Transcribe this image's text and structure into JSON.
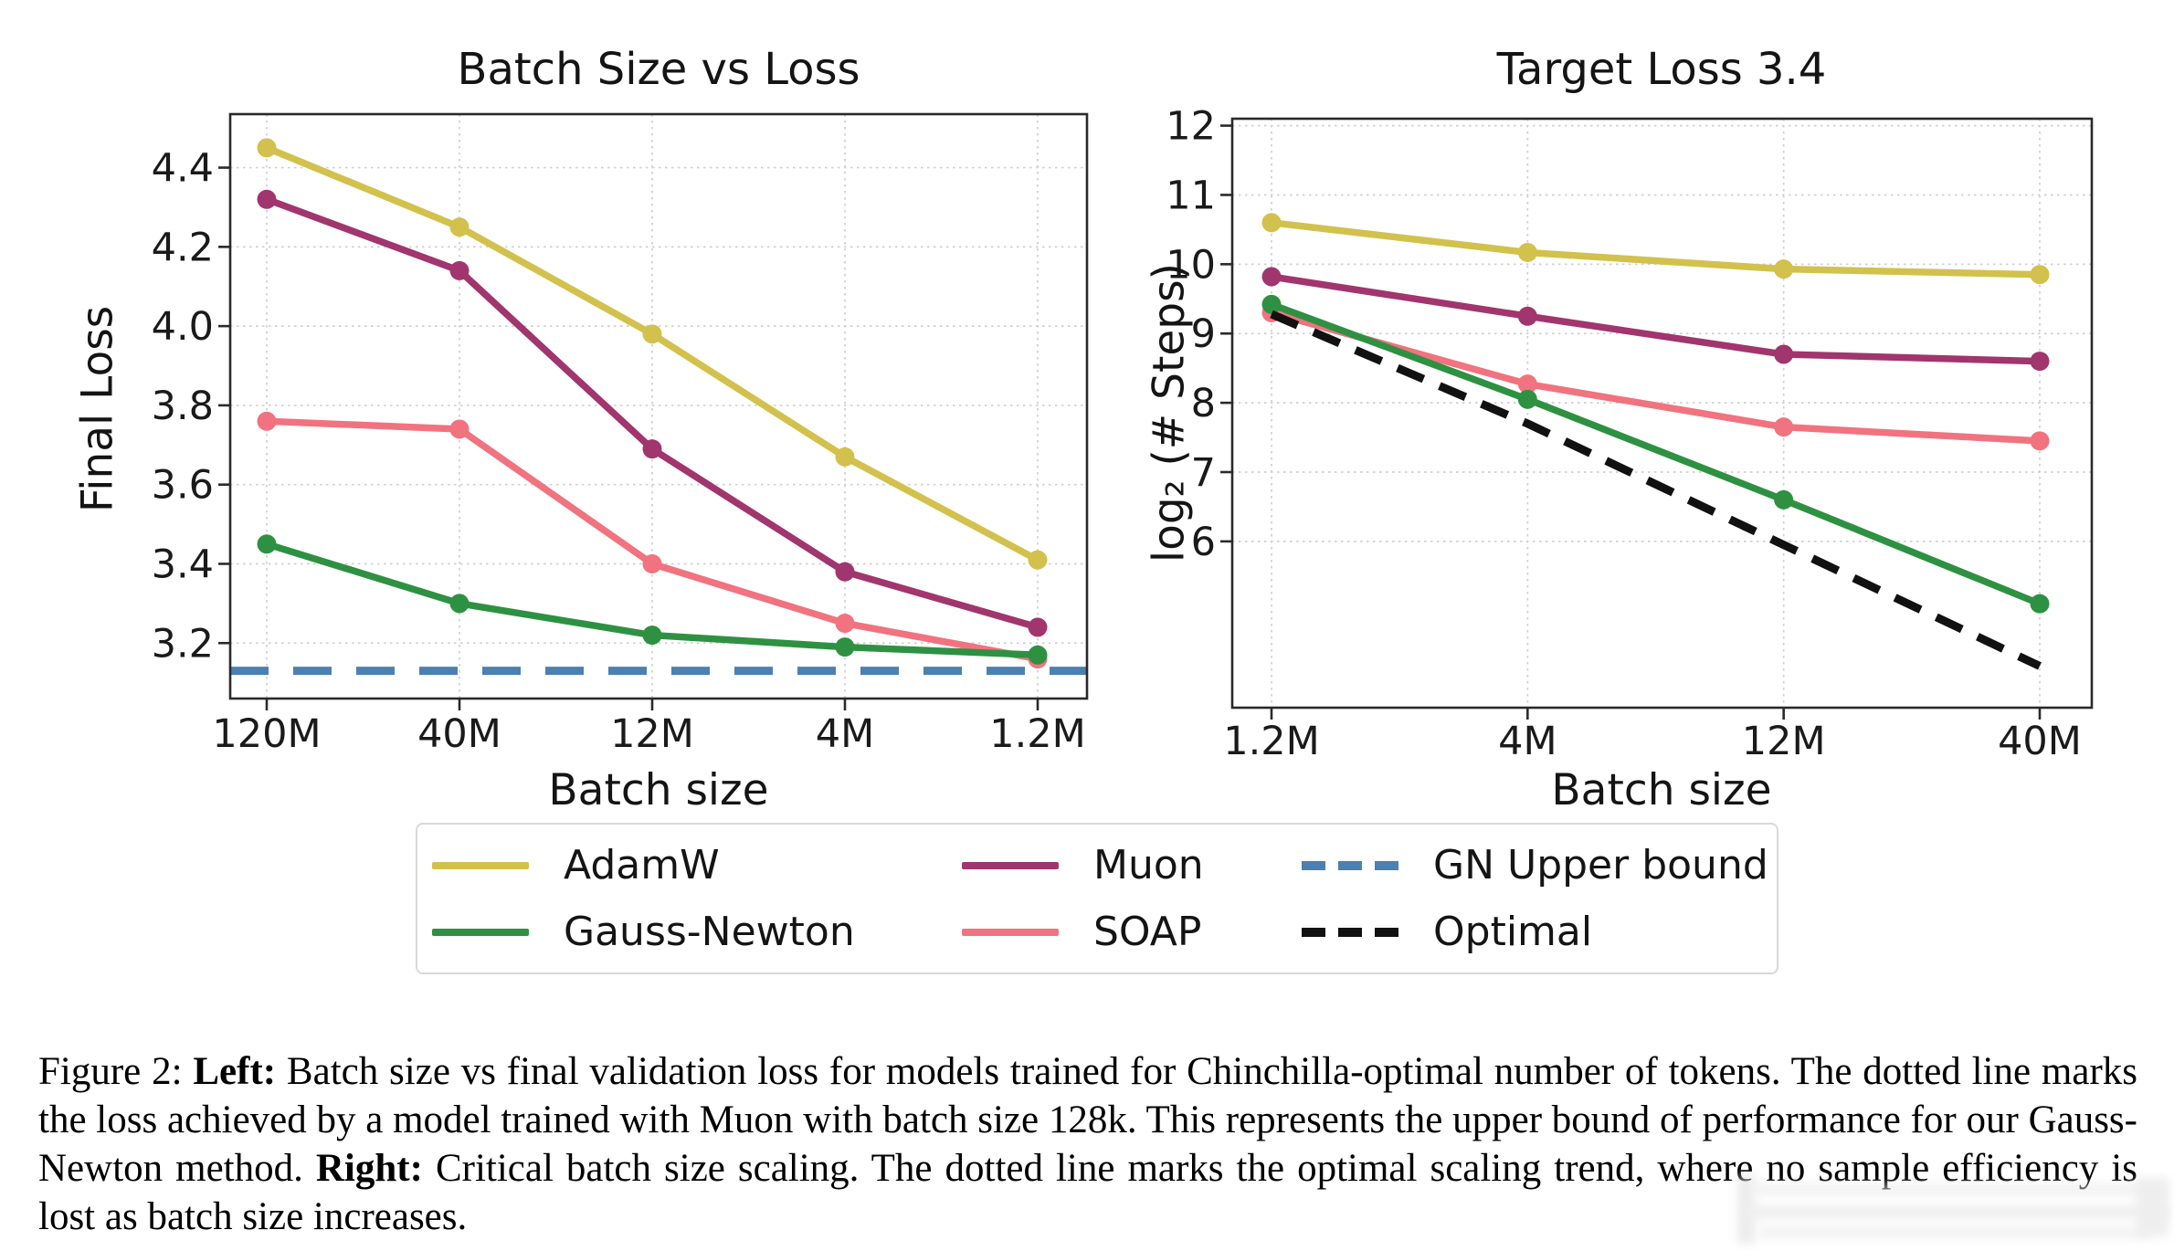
{
  "chart_data": [
    {
      "type": "line",
      "title": "Batch Size vs Loss",
      "xlabel": "Batch size",
      "ylabel": "Final Loss",
      "categories": [
        "120M",
        "40M",
        "12M",
        "4M",
        "1.2M"
      ],
      "ylim": [
        3.06,
        4.535
      ],
      "yticks": [
        3.2,
        3.4,
        3.6,
        3.8,
        4.0,
        4.2,
        4.4
      ],
      "ytick_labels": [
        "3.2",
        "3.4",
        "3.6",
        "3.8",
        "4.0",
        "4.2",
        "4.4"
      ],
      "grid": true,
      "series": [
        {
          "name": "AdamW",
          "color": "#d2c14c",
          "values": [
            4.45,
            4.25,
            3.98,
            3.67,
            3.41
          ],
          "marker": true,
          "dashed": false,
          "full_width": false
        },
        {
          "name": "Muon",
          "color": "#a1356d",
          "values": [
            4.32,
            4.14,
            3.69,
            3.38,
            3.24
          ],
          "marker": true,
          "dashed": false,
          "full_width": false
        },
        {
          "name": "SOAP",
          "color": "#f0737f",
          "values": [
            3.76,
            3.74,
            3.4,
            3.25,
            3.16
          ],
          "marker": true,
          "dashed": false,
          "full_width": false
        },
        {
          "name": "Gauss-Newton",
          "color": "#2e9142",
          "values": [
            3.45,
            3.3,
            3.22,
            3.19,
            3.17
          ],
          "marker": true,
          "dashed": false,
          "full_width": false
        },
        {
          "name": "GN Upper bound",
          "color": "#4b80b2",
          "values": [
            3.13,
            3.13,
            3.13,
            3.13,
            3.13
          ],
          "marker": false,
          "dashed": true,
          "full_width": true
        }
      ]
    },
    {
      "type": "line",
      "title": "Target Loss 3.4",
      "xlabel": "Batch size",
      "ylabel": "log₂ (# Steps)",
      "categories": [
        "1.2M",
        "4M",
        "12M",
        "40M"
      ],
      "ylim": [
        3.6,
        12.1
      ],
      "yticks": [
        6,
        7,
        8,
        9,
        10,
        11,
        12
      ],
      "ytick_labels": [
        "6",
        "7",
        "8",
        "9",
        "10",
        "11",
        "12"
      ],
      "grid": true,
      "series": [
        {
          "name": "AdamW",
          "color": "#d2c14c",
          "values": [
            10.6,
            10.17,
            9.93,
            9.85
          ],
          "marker": true,
          "dashed": false,
          "full_width": false
        },
        {
          "name": "Muon",
          "color": "#a1356d",
          "values": [
            9.82,
            9.25,
            8.7,
            8.6
          ],
          "marker": true,
          "dashed": false,
          "full_width": false
        },
        {
          "name": "SOAP",
          "color": "#f0737f",
          "values": [
            9.3,
            8.27,
            7.65,
            7.45
          ],
          "marker": true,
          "dashed": false,
          "full_width": false
        },
        {
          "name": "Gauss-Newton",
          "color": "#2e9142",
          "values": [
            9.42,
            8.05,
            6.6,
            5.1
          ],
          "marker": true,
          "dashed": false,
          "full_width": false
        },
        {
          "name": "Optimal",
          "color": "#111111",
          "values": [
            9.28,
            7.7,
            5.95,
            4.2
          ],
          "marker": false,
          "dashed": true,
          "full_width": false
        }
      ]
    }
  ],
  "legend": {
    "items": [
      {
        "label": "AdamW",
        "color": "#d2c14c",
        "style": "solid"
      },
      {
        "label": "Muon",
        "color": "#a1356d",
        "style": "solid"
      },
      {
        "label": "GN Upper bound",
        "color": "#4b80b2",
        "style": "dashed"
      },
      {
        "label": "Gauss-Newton",
        "color": "#2e9142",
        "style": "solid"
      },
      {
        "label": "SOAP",
        "color": "#f0737f",
        "style": "solid"
      },
      {
        "label": "Optimal",
        "color": "#111111",
        "style": "dashed"
      }
    ]
  },
  "caption": {
    "segments": [
      {
        "text": "Figure 2: ",
        "bold": false
      },
      {
        "text": "Left:",
        "bold": true
      },
      {
        "text": " Batch size vs final validation loss for models trained for Chinchilla-optimal number of tokens. The dotted line marks the loss achieved by a model trained with Muon with batch size 128k. This represents the upper bound of performance for our Gauss-Newton method. ",
        "bold": false
      },
      {
        "text": "Right:",
        "bold": true
      },
      {
        "text": " Critical batch size scaling. The dotted line marks the optimal scaling trend, where no sample efficiency is lost as batch size increases.",
        "bold": false
      }
    ]
  },
  "colors": {
    "grid": "#cfcfcf",
    "spine": "#2a2a2a",
    "tick_text": "#1a1a1a"
  }
}
